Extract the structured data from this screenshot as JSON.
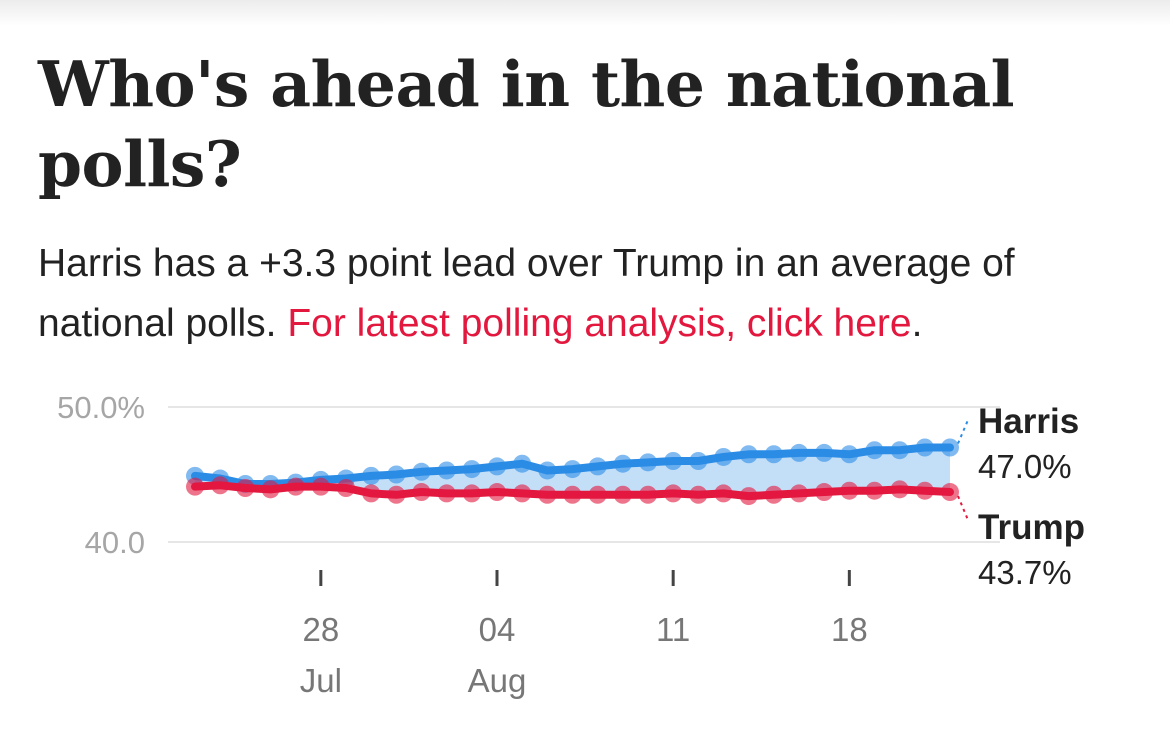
{
  "page": {
    "headline": "Who's ahead in the national polls?",
    "subhead_text": "Harris has a +3.3 point lead over Trump in an average of national polls. ",
    "subhead_link": "For latest polling analysis, click here",
    "subhead_end": "."
  },
  "colors": {
    "harris": "#2b8ce6",
    "trump": "#e3183f",
    "fill": "#bcdcf7",
    "link": "#e3183f"
  },
  "chart_data": {
    "type": "line",
    "xlabel": "",
    "ylabel": "",
    "ylim": [
      40,
      50
    ],
    "y_ticks": [
      {
        "value": 50,
        "label": "50.0%"
      },
      {
        "value": 40,
        "label": "40.0"
      }
    ],
    "x_domain": [
      "2024-07-23",
      "2024-08-22"
    ],
    "x_ticks": [
      {
        "date": "2024-07-28",
        "day": "28",
        "month": "Jul"
      },
      {
        "date": "2024-08-04",
        "day": "04",
        "month": "Aug"
      },
      {
        "date": "2024-08-11",
        "day": "11",
        "month": ""
      },
      {
        "date": "2024-08-18",
        "day": "18",
        "month": ""
      }
    ],
    "grid": true,
    "legend": "end-labels",
    "x": [
      "2024-07-23",
      "2024-07-24",
      "2024-07-25",
      "2024-07-26",
      "2024-07-27",
      "2024-07-28",
      "2024-07-29",
      "2024-07-30",
      "2024-07-31",
      "2024-08-01",
      "2024-08-02",
      "2024-08-03",
      "2024-08-04",
      "2024-08-05",
      "2024-08-06",
      "2024-08-07",
      "2024-08-08",
      "2024-08-09",
      "2024-08-10",
      "2024-08-11",
      "2024-08-12",
      "2024-08-13",
      "2024-08-14",
      "2024-08-15",
      "2024-08-16",
      "2024-08-17",
      "2024-08-18",
      "2024-08-19",
      "2024-08-20",
      "2024-08-21",
      "2024-08-22"
    ],
    "series": [
      {
        "name": "Harris",
        "value_label": "47.0%",
        "values": [
          44.9,
          44.7,
          44.3,
          44.3,
          44.4,
          44.6,
          44.7,
          44.9,
          45.0,
          45.2,
          45.3,
          45.4,
          45.6,
          45.8,
          45.3,
          45.4,
          45.6,
          45.8,
          45.9,
          46.0,
          46.0,
          46.3,
          46.5,
          46.5,
          46.6,
          46.6,
          46.5,
          46.8,
          46.8,
          47.0,
          47.0
        ]
      },
      {
        "name": "Trump",
        "value_label": "43.7%",
        "values": [
          44.1,
          44.2,
          44.0,
          43.9,
          44.1,
          44.1,
          44.0,
          43.6,
          43.5,
          43.7,
          43.6,
          43.6,
          43.7,
          43.6,
          43.5,
          43.5,
          43.5,
          43.5,
          43.5,
          43.6,
          43.5,
          43.6,
          43.4,
          43.5,
          43.6,
          43.7,
          43.8,
          43.8,
          43.9,
          43.8,
          43.7
        ]
      }
    ]
  }
}
